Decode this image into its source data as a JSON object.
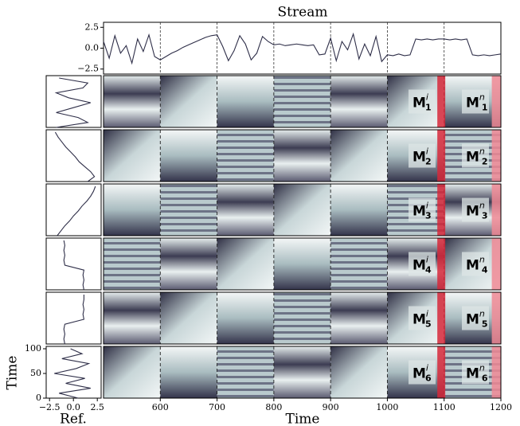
{
  "chart_data": [
    {
      "type": "line",
      "title": "Stream",
      "color": "#2e2e48",
      "x": [
        500,
        510,
        520,
        530,
        540,
        550,
        560,
        570,
        580,
        590,
        600,
        610,
        620,
        630,
        640,
        650,
        660,
        670,
        680,
        690,
        700,
        710,
        720,
        730,
        740,
        750,
        760,
        770,
        780,
        790,
        800,
        810,
        820,
        830,
        840,
        850,
        860,
        870,
        880,
        890,
        900,
        910,
        920,
        930,
        940,
        950,
        960,
        970,
        980,
        990,
        1000,
        1010,
        1020,
        1030,
        1040,
        1050,
        1060,
        1070,
        1080,
        1090,
        1100,
        1110,
        1120,
        1130,
        1140,
        1150,
        1160,
        1170,
        1180,
        1190,
        1200
      ],
      "values": [
        0.8,
        -1.2,
        1.5,
        -0.6,
        0.3,
        -1.8,
        1.1,
        -0.4,
        1.6,
        -1.0,
        -1.4,
        -1.0,
        -0.6,
        -0.3,
        0.1,
        0.4,
        0.7,
        1.0,
        1.3,
        1.5,
        1.6,
        0.2,
        -1.5,
        -0.3,
        1.5,
        0.5,
        -1.4,
        -0.6,
        1.4,
        0.8,
        0.4,
        0.5,
        0.3,
        0.4,
        0.5,
        0.4,
        0.3,
        0.4,
        -0.8,
        -0.7,
        1.2,
        -1.5,
        0.8,
        -0.2,
        1.7,
        -1.3,
        0.5,
        -0.9,
        1.4,
        -1.6,
        -0.8,
        -0.9,
        -0.7,
        -0.9,
        -0.8,
        1.1,
        1.0,
        1.1,
        1.0,
        1.1,
        1.1,
        1.0,
        1.1,
        1.0,
        1.1,
        -0.8,
        -0.9,
        -0.8,
        -0.9,
        -0.8,
        -0.7
      ],
      "xlim": [
        500,
        1200
      ],
      "ylim": [
        -3.1,
        3.1
      ],
      "yticks": [
        {
          "value": -2.5,
          "label": "−2.5"
        },
        {
          "value": 0,
          "label": "0.0"
        },
        2.5
      ],
      "boundaries": [
        600,
        700,
        800,
        900,
        1000,
        1100
      ]
    },
    {
      "type": "heatmap",
      "xlabel": "Time",
      "xlim": [
        500,
        1200
      ],
      "xticks": [
        600,
        700,
        800,
        900,
        1000,
        1100,
        1200
      ],
      "boundaries": [
        600,
        700,
        800,
        900,
        1000,
        1100
      ],
      "highlights": [
        {
          "x0": 1088,
          "x1": 1102,
          "color": "#d62839"
        },
        {
          "x0": 1184,
          "x1": 1200,
          "color": "#f08a95"
        }
      ],
      "rows": [
        {
          "labels": [
            {
              "base": "M",
              "sub": "1",
              "sup": "i"
            },
            {
              "base": "M",
              "sub": "1",
              "sup": "n"
            }
          ]
        },
        {
          "labels": [
            {
              "base": "M",
              "sub": "2",
              "sup": "i"
            },
            {
              "base": "M",
              "sub": "2",
              "sup": "n"
            }
          ]
        },
        {
          "labels": [
            {
              "base": "M",
              "sub": "3",
              "sup": "i"
            },
            {
              "base": "M",
              "sub": "3",
              "sup": "n"
            }
          ]
        },
        {
          "labels": [
            {
              "base": "M",
              "sub": "4",
              "sup": "i"
            },
            {
              "base": "M",
              "sub": "4",
              "sup": "n"
            }
          ]
        },
        {
          "labels": [
            {
              "base": "M",
              "sub": "5",
              "sup": "i"
            },
            {
              "base": "M",
              "sub": "5",
              "sup": "n"
            }
          ]
        },
        {
          "labels": [
            {
              "base": "M",
              "sub": "6",
              "sup": "i"
            },
            {
              "base": "M",
              "sub": "6",
              "sup": "n"
            }
          ]
        }
      ]
    },
    {
      "type": "ref",
      "xlabel": "Ref.",
      "ylabel": "Time",
      "color": "#2e2e48",
      "xlim": [
        -2.85,
        2.9
      ],
      "xticks": [
        {
          "value": -2.5,
          "label": "−2.5"
        },
        {
          "value": 0,
          "label": "0.0"
        },
        2.5
      ],
      "ylim": [
        0,
        100
      ],
      "yticks": [
        0,
        50,
        100
      ],
      "time": [
        0,
        10,
        20,
        30,
        40,
        50,
        60,
        70,
        80,
        90,
        100
      ],
      "series": [
        {
          "values": [
            -1.8,
            1.5,
            0.5,
            -1.8,
            0,
            1.8,
            -0.5,
            -1.8,
            1.0,
            1.5,
            -1.5
          ]
        },
        {
          "values": [
            1.5,
            2.2,
            1.8,
            1.2,
            0.6,
            0.2,
            -0.3,
            -0.8,
            -1.2,
            -1.6,
            -1.9
          ]
        },
        {
          "values": [
            -1.7,
            -1.3,
            -0.9,
            -0.4,
            0,
            0.5,
            0.9,
            1.4,
            1.8,
            2.1,
            2.3
          ]
        },
        {
          "values": [
            1.1,
            1.0,
            1.1,
            1.0,
            1.1,
            -0.9,
            -1.0,
            -0.9,
            -1.0,
            -0.9,
            -1.0
          ]
        },
        {
          "values": [
            -0.9,
            -1.0,
            -0.9,
            -1.0,
            -0.9,
            1.1,
            1.0,
            1.1,
            1.0,
            1.1,
            1.1
          ]
        },
        {
          "values": [
            0.5,
            -1.5,
            1.8,
            -0.8,
            1.2,
            -2.0,
            0.3,
            1.6,
            -1.2,
            0.9,
            -0.3
          ]
        }
      ]
    }
  ]
}
